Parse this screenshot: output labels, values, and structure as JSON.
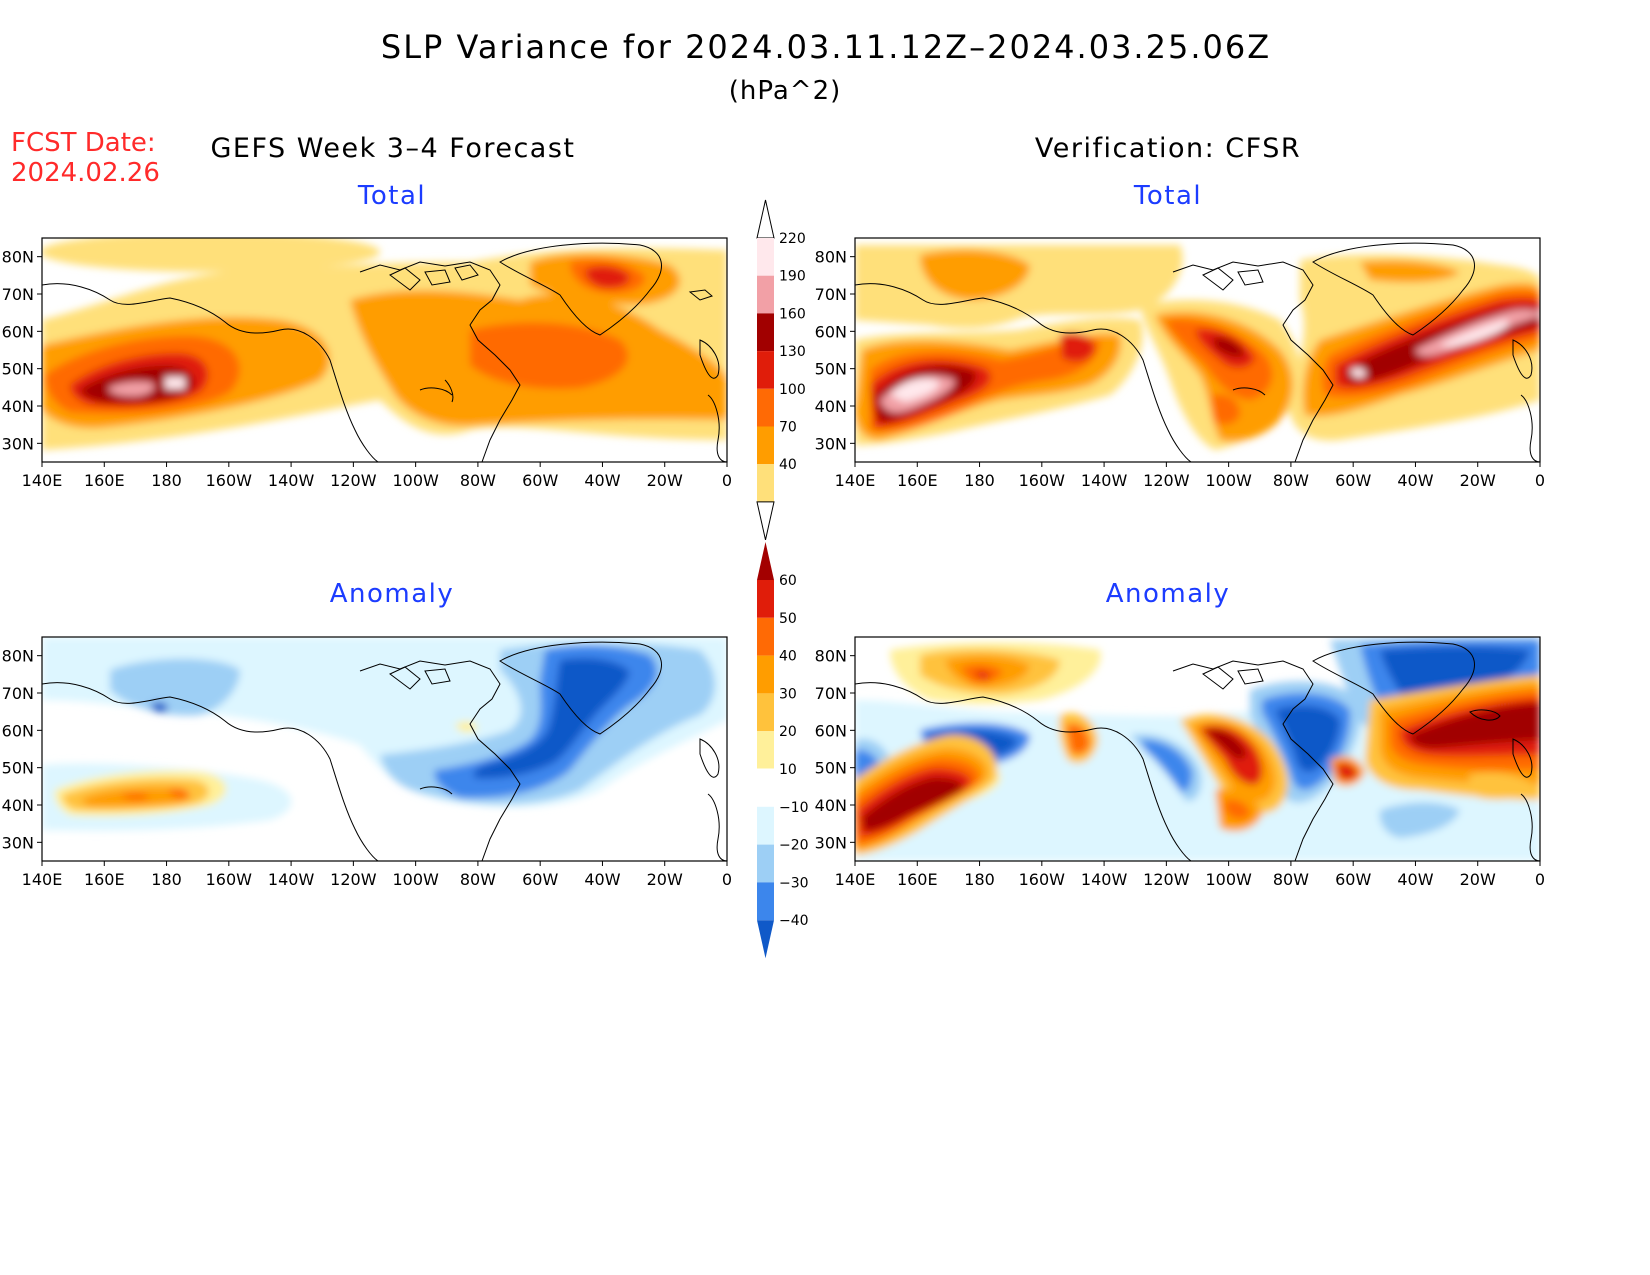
{
  "title": "SLP Variance for 2024.03.11.12Z–2024.03.25.06Z",
  "units": "(hPa^2)",
  "fcst_date_label": "FCST Date:",
  "fcst_date_value": "2024.02.26",
  "left_header": "GEFS Week 3–4 Forecast",
  "right_header": "Verification: CFSR",
  "panels": {
    "fcst_total": {
      "subtitle": "Total"
    },
    "verif_total": {
      "subtitle": "Total"
    },
    "fcst_anom": {
      "subtitle": "Anomaly"
    },
    "verif_anom": {
      "subtitle": "Anomaly"
    }
  },
  "axes": {
    "lon_labels": [
      "140E",
      "160E",
      "180",
      "160W",
      "140W",
      "120W",
      "100W",
      "80W",
      "60W",
      "40W",
      "20W",
      "0"
    ],
    "lat_labels": [
      "80N",
      "70N",
      "60N",
      "50N",
      "40N",
      "30N"
    ]
  },
  "colorbars": {
    "total": {
      "labels": [
        "220",
        "190",
        "160",
        "130",
        "100",
        "70",
        "40"
      ],
      "colors": [
        "#ffe8ec",
        "#f2a0a6",
        "#a10000",
        "#e01d0a",
        "#ff6a05",
        "#ff9d00",
        "#ffe07a"
      ]
    },
    "anomaly": {
      "labels": [
        "60",
        "50",
        "40",
        "30",
        "20",
        "10",
        "−10",
        "−20",
        "−30",
        "−40"
      ],
      "colors": [
        "#a30000",
        "#e01d0a",
        "#ff6a05",
        "#ff9d00",
        "#ffc23c",
        "#fff09a",
        "#ffffff",
        "#ddf6ff",
        "#9dcff5",
        "#3c86ec",
        "#1059c8"
      ]
    }
  }
}
